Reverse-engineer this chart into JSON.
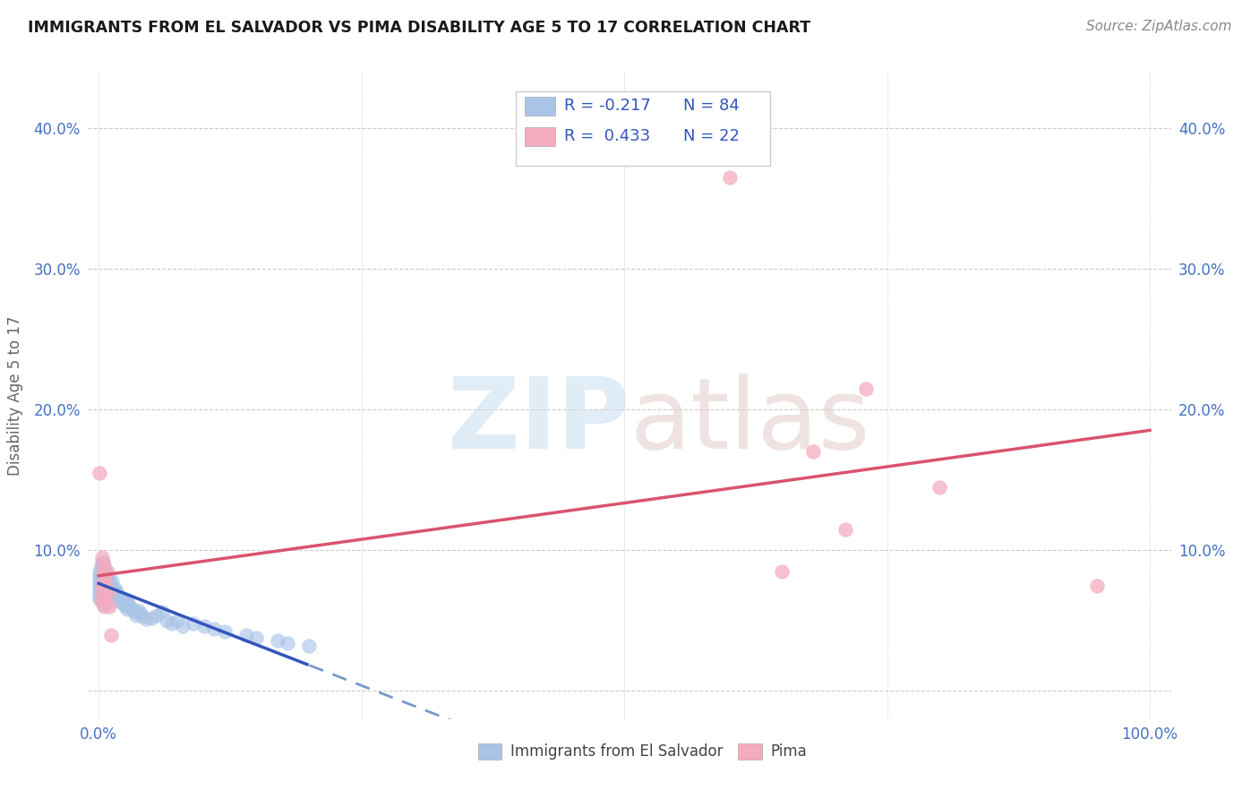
{
  "title": "IMMIGRANTS FROM EL SALVADOR VS PIMA DISABILITY AGE 5 TO 17 CORRELATION CHART",
  "source": "Source: ZipAtlas.com",
  "ylabel": "Disability Age 5 to 17",
  "blue_color": "#aac4e8",
  "pink_color": "#f4abbe",
  "trendline_blue_solid": "#3355bb",
  "trendline_blue_dash": "#7799cc",
  "trendline_pink": "#d9546e",
  "axis_tick_color": "#4472c4",
  "ylabel_color": "#666666",
  "grid_color": "#cccccc",
  "background_color": "#ffffff",
  "watermark_zip_color": "#ccddf0",
  "watermark_atlas_color": "#e8d8d0",
  "legend_text_color": "#3355bb",
  "legend_r_blue": "R = -0.217",
  "legend_n_blue": "N = 84",
  "legend_r_pink": "R =  0.433",
  "legend_n_pink": "N = 22",
  "blue_x": [
    0.001,
    0.001,
    0.001,
    0.001,
    0.001,
    0.001,
    0.001,
    0.001,
    0.002,
    0.002,
    0.002,
    0.002,
    0.002,
    0.002,
    0.002,
    0.003,
    0.003,
    0.003,
    0.003,
    0.004,
    0.004,
    0.004,
    0.004,
    0.005,
    0.005,
    0.005,
    0.005,
    0.006,
    0.006,
    0.006,
    0.007,
    0.007,
    0.007,
    0.008,
    0.008,
    0.009,
    0.009,
    0.01,
    0.01,
    0.011,
    0.011,
    0.012,
    0.012,
    0.013,
    0.013,
    0.014,
    0.015,
    0.016,
    0.017,
    0.018,
    0.019,
    0.02,
    0.021,
    0.022,
    0.023,
    0.024,
    0.025,
    0.026,
    0.027,
    0.028,
    0.03,
    0.032,
    0.034,
    0.036,
    0.038,
    0.04,
    0.042,
    0.045,
    0.05,
    0.055,
    0.06,
    0.065,
    0.07,
    0.075,
    0.08,
    0.09,
    0.1,
    0.11,
    0.12,
    0.14,
    0.15,
    0.17,
    0.18,
    0.2
  ],
  "blue_y": [
    0.085,
    0.082,
    0.079,
    0.076,
    0.073,
    0.07,
    0.068,
    0.065,
    0.09,
    0.087,
    0.083,
    0.08,
    0.077,
    0.074,
    0.071,
    0.088,
    0.085,
    0.082,
    0.079,
    0.092,
    0.089,
    0.086,
    0.062,
    0.087,
    0.084,
    0.081,
    0.078,
    0.085,
    0.082,
    0.079,
    0.083,
    0.08,
    0.076,
    0.081,
    0.078,
    0.079,
    0.076,
    0.077,
    0.074,
    0.075,
    0.072,
    0.073,
    0.07,
    0.078,
    0.064,
    0.069,
    0.071,
    0.072,
    0.07,
    0.068,
    0.066,
    0.067,
    0.065,
    0.063,
    0.064,
    0.062,
    0.06,
    0.065,
    0.058,
    0.062,
    0.06,
    0.058,
    0.056,
    0.054,
    0.057,
    0.055,
    0.053,
    0.051,
    0.052,
    0.054,
    0.056,
    0.05,
    0.048,
    0.05,
    0.046,
    0.048,
    0.046,
    0.044,
    0.042,
    0.04,
    0.038,
    0.036,
    0.034,
    0.032
  ],
  "pink_x": [
    0.001,
    0.002,
    0.003,
    0.003,
    0.004,
    0.004,
    0.005,
    0.005,
    0.006,
    0.006,
    0.007,
    0.008,
    0.009,
    0.01,
    0.012,
    0.6,
    0.65,
    0.68,
    0.71,
    0.73,
    0.8,
    0.95
  ],
  "pink_y": [
    0.155,
    0.065,
    0.095,
    0.075,
    0.085,
    0.07,
    0.09,
    0.06,
    0.08,
    0.065,
    0.075,
    0.085,
    0.07,
    0.06,
    0.04,
    0.365,
    0.085,
    0.17,
    0.115,
    0.215,
    0.145,
    0.075
  ],
  "xlim": [
    -0.01,
    1.02
  ],
  "ylim": [
    -0.02,
    0.44
  ],
  "xticks": [
    0.0,
    0.25,
    0.5,
    0.75,
    1.0
  ],
  "xtick_labels": [
    "0.0%",
    "",
    "",
    "",
    "100.0%"
  ],
  "yticks_left": [
    0.0,
    0.1,
    0.2,
    0.3,
    0.4
  ],
  "ytick_labels_left": [
    "",
    "10.0%",
    "20.0%",
    "30.0%",
    "40.0%"
  ],
  "yticks_right": [
    0.1,
    0.2,
    0.3,
    0.4
  ],
  "ytick_labels_right": [
    "10.0%",
    "20.0%",
    "30.0%",
    "40.0%"
  ]
}
